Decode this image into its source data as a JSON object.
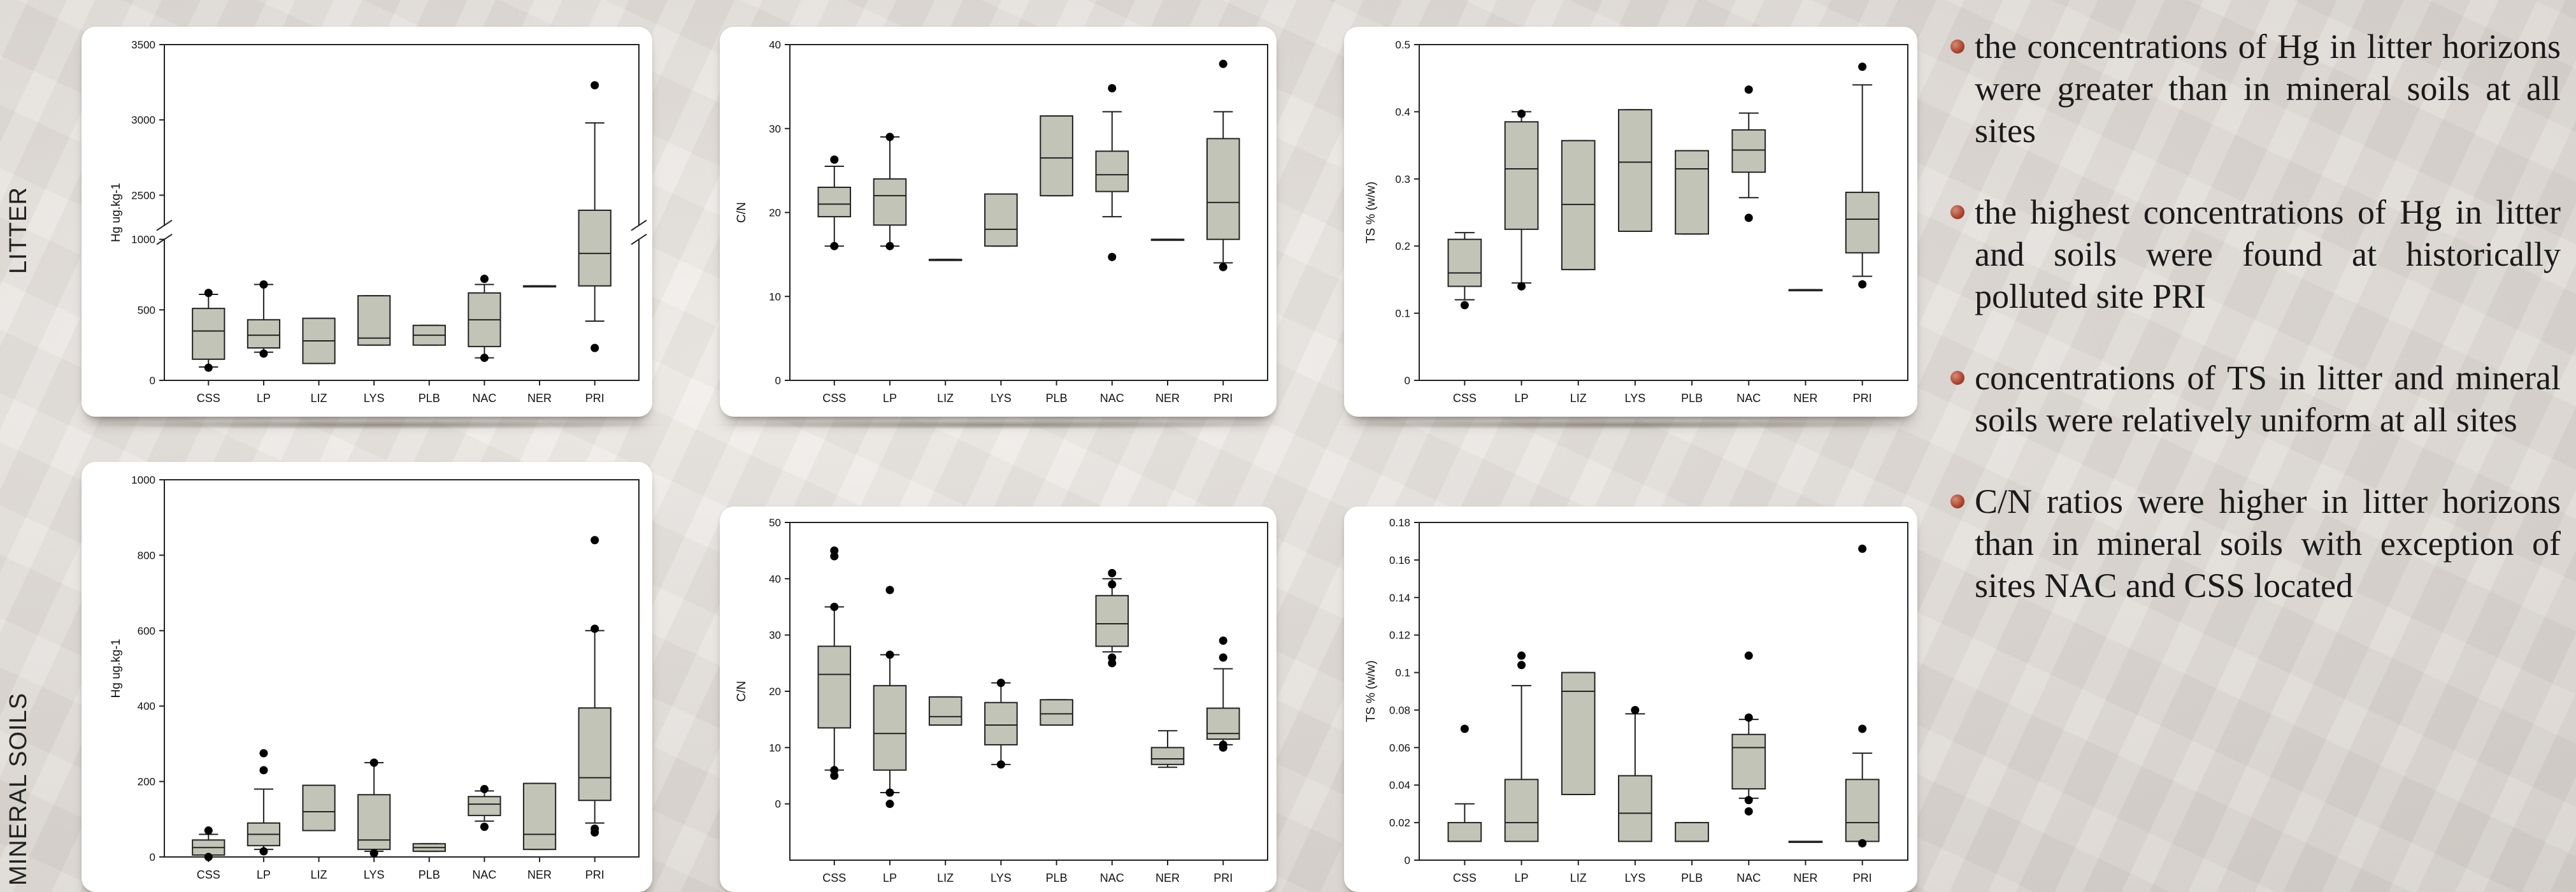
{
  "row_labels": {
    "top": "LITTER",
    "bottom": "MINERAL SOILS"
  },
  "colors": {
    "box_fill": "#c3c4b8",
    "box_stroke": "#222222",
    "outlier": "#000000",
    "bullet_dot": "#a8442e"
  },
  "bullets": [
    "the concentrations of Hg in litter horizons were greater than in mineral soils at all sites",
    "the highest concentrations of Hg in litter and soils were found at historically polluted site PRI",
    "concentrations of TS in litter and mineral soils were relatively uniform at all sites",
    "C/N ratios were higher in litter horizons than in mineral soils with exception of sites NAC and CSS located"
  ],
  "chart_data": [
    {
      "type": "box",
      "categories": [
        "CSS",
        "LP",
        "LIZ",
        "LYS",
        "PLB",
        "NAC",
        "NER",
        "PRI"
      ],
      "ylabel": "Hg ug.kg-1",
      "ylim": [
        0,
        3500
      ],
      "axis_break": [
        1000,
        2300
      ],
      "yticks": [
        0,
        500,
        1000,
        2500,
        3000,
        3500
      ],
      "boxes": [
        {
          "whisker_low": 95,
          "q1": 150,
          "median": 350,
          "q3": 510,
          "whisker_high": 610,
          "outliers": [
            90,
            620
          ]
        },
        {
          "whisker_low": 200,
          "q1": 230,
          "median": 320,
          "q3": 430,
          "whisker_high": 680,
          "outliers": [
            190,
            680
          ]
        },
        {
          "whisker_low": 120,
          "q1": 120,
          "median": 280,
          "q3": 440,
          "whisker_high": 440,
          "outliers": []
        },
        {
          "whisker_low": 250,
          "q1": 250,
          "median": 300,
          "q3": 600,
          "whisker_high": 600,
          "outliers": []
        },
        {
          "whisker_low": 250,
          "q1": 250,
          "median": 320,
          "q3": 390,
          "whisker_high": 390,
          "outliers": []
        },
        {
          "whisker_low": 160,
          "q1": 240,
          "median": 430,
          "q3": 620,
          "whisker_high": 680,
          "outliers": [
            160,
            720
          ]
        },
        {
          "whisker_low": 670,
          "q1": 670,
          "median": 670,
          "q3": 670,
          "whisker_high": 670,
          "outliers": []
        },
        {
          "whisker_low": 420,
          "q1": 670,
          "median": 900,
          "q3": 2400,
          "whisker_high": 2980,
          "outliers": [
            230,
            3230
          ]
        }
      ]
    },
    {
      "type": "box",
      "categories": [
        "CSS",
        "LP",
        "LIZ",
        "LYS",
        "PLB",
        "NAC",
        "NER",
        "PRI"
      ],
      "ylabel": "C/N",
      "ylim": [
        0,
        40
      ],
      "yticks": [
        0,
        10,
        20,
        30,
        40
      ],
      "boxes": [
        {
          "whisker_low": 16,
          "q1": 19.5,
          "median": 21,
          "q3": 23,
          "whisker_high": 25.5,
          "outliers": [
            16,
            26.3
          ]
        },
        {
          "whisker_low": 16,
          "q1": 18.5,
          "median": 22,
          "q3": 24,
          "whisker_high": 29,
          "outliers": [
            16,
            29
          ]
        },
        {
          "whisker_low": 14.4,
          "q1": 14.4,
          "median": 14.4,
          "q3": 14.4,
          "whisker_high": 14.4,
          "outliers": []
        },
        {
          "whisker_low": 16,
          "q1": 16,
          "median": 18,
          "q3": 22.2,
          "whisker_high": 22.2,
          "outliers": []
        },
        {
          "whisker_low": 22,
          "q1": 22,
          "median": 26.5,
          "q3": 31.5,
          "whisker_high": 31.5,
          "outliers": []
        },
        {
          "whisker_low": 19.5,
          "q1": 22.5,
          "median": 24.5,
          "q3": 27.3,
          "whisker_high": 32,
          "outliers": [
            14.7,
            34.8
          ]
        },
        {
          "whisker_low": 16.8,
          "q1": 16.8,
          "median": 16.8,
          "q3": 16.8,
          "whisker_high": 16.8,
          "outliers": []
        },
        {
          "whisker_low": 14,
          "q1": 16.8,
          "median": 21.2,
          "q3": 28.8,
          "whisker_high": 32,
          "outliers": [
            13.5,
            37.7
          ]
        }
      ]
    },
    {
      "type": "box",
      "categories": [
        "CSS",
        "LP",
        "LIZ",
        "LYS",
        "PLB",
        "NAC",
        "NER",
        "PRI"
      ],
      "ylabel": "TS % (w/w)",
      "ylim": [
        0,
        0.5
      ],
      "yticks": [
        0.0,
        0.1,
        0.2,
        0.3,
        0.4,
        0.5
      ],
      "boxes": [
        {
          "whisker_low": 0.12,
          "q1": 0.14,
          "median": 0.16,
          "q3": 0.21,
          "whisker_high": 0.22,
          "outliers": [
            0.112
          ]
        },
        {
          "whisker_low": 0.145,
          "q1": 0.225,
          "median": 0.315,
          "q3": 0.385,
          "whisker_high": 0.4,
          "outliers": [
            0.14,
            0.397
          ]
        },
        {
          "whisker_low": 0.165,
          "q1": 0.165,
          "median": 0.262,
          "q3": 0.357,
          "whisker_high": 0.357,
          "outliers": []
        },
        {
          "whisker_low": 0.222,
          "q1": 0.222,
          "median": 0.325,
          "q3": 0.403,
          "whisker_high": 0.403,
          "outliers": []
        },
        {
          "whisker_low": 0.218,
          "q1": 0.218,
          "median": 0.315,
          "q3": 0.342,
          "whisker_high": 0.342,
          "outliers": []
        },
        {
          "whisker_low": 0.272,
          "q1": 0.31,
          "median": 0.343,
          "q3": 0.373,
          "whisker_high": 0.398,
          "outliers": [
            0.242,
            0.433
          ]
        },
        {
          "whisker_low": 0.135,
          "q1": 0.135,
          "median": 0.135,
          "q3": 0.135,
          "whisker_high": 0.135,
          "outliers": []
        },
        {
          "whisker_low": 0.155,
          "q1": 0.19,
          "median": 0.24,
          "q3": 0.28,
          "whisker_high": 0.44,
          "outliers": [
            0.143,
            0.467
          ]
        }
      ]
    },
    {
      "type": "box",
      "categories": [
        "CSS",
        "LP",
        "LIZ",
        "LYS",
        "PLB",
        "NAC",
        "NER",
        "PRI"
      ],
      "ylabel": "Hg ug.kg-1",
      "ylim": [
        0,
        1000
      ],
      "yticks": [
        0,
        200,
        400,
        600,
        800,
        1000
      ],
      "boxes": [
        {
          "whisker_low": 0,
          "q1": 5,
          "median": 25,
          "q3": 45,
          "whisker_high": 60,
          "outliers": [
            0,
            70
          ]
        },
        {
          "whisker_low": 20,
          "q1": 30,
          "median": 60,
          "q3": 90,
          "whisker_high": 180,
          "outliers": [
            15,
            230,
            275
          ]
        },
        {
          "whisker_low": 70,
          "q1": 70,
          "median": 120,
          "q3": 190,
          "whisker_high": 190,
          "outliers": []
        },
        {
          "whisker_low": 15,
          "q1": 20,
          "median": 45,
          "q3": 165,
          "whisker_high": 250,
          "outliers": [
            10,
            250
          ]
        },
        {
          "whisker_low": 15,
          "q1": 15,
          "median": 25,
          "q3": 35,
          "whisker_high": 35,
          "outliers": []
        },
        {
          "whisker_low": 95,
          "q1": 110,
          "median": 140,
          "q3": 160,
          "whisker_high": 175,
          "outliers": [
            80,
            180
          ]
        },
        {
          "whisker_low": 20,
          "q1": 20,
          "median": 60,
          "q3": 195,
          "whisker_high": 195,
          "outliers": []
        },
        {
          "whisker_low": 90,
          "q1": 150,
          "median": 210,
          "q3": 395,
          "whisker_high": 600,
          "outliers": [
            65,
            75,
            605,
            840
          ]
        }
      ]
    },
    {
      "type": "box",
      "categories": [
        "CSS",
        "LP",
        "LIZ",
        "LYS",
        "PLB",
        "NAC",
        "NER",
        "PRI"
      ],
      "ylabel": "C/N",
      "ylim": [
        -10,
        50
      ],
      "yticks": [
        0,
        10,
        20,
        30,
        40,
        50
      ],
      "boxes": [
        {
          "whisker_low": 6,
          "q1": 13.5,
          "median": 23,
          "q3": 28,
          "whisker_high": 35,
          "outliers": [
            5,
            6,
            35,
            44,
            45
          ]
        },
        {
          "whisker_low": 2,
          "q1": 6,
          "median": 12.5,
          "q3": 21,
          "whisker_high": 26.5,
          "outliers": [
            0,
            2,
            26.5,
            38
          ]
        },
        {
          "whisker_low": 14,
          "q1": 14,
          "median": 15.5,
          "q3": 19,
          "whisker_high": 19,
          "outliers": []
        },
        {
          "whisker_low": 7,
          "q1": 10.5,
          "median": 14,
          "q3": 18,
          "whisker_high": 21.5,
          "outliers": [
            7,
            21.5
          ]
        },
        {
          "whisker_low": 14,
          "q1": 14,
          "median": 16,
          "q3": 18.5,
          "whisker_high": 18.5,
          "outliers": []
        },
        {
          "whisker_low": 27,
          "q1": 28,
          "median": 32,
          "q3": 37,
          "whisker_high": 40,
          "outliers": [
            25,
            26,
            39,
            41
          ]
        },
        {
          "whisker_low": 6.5,
          "q1": 7,
          "median": 8,
          "q3": 10,
          "whisker_high": 13,
          "outliers": []
        },
        {
          "whisker_low": 10.5,
          "q1": 11.5,
          "median": 12.5,
          "q3": 17,
          "whisker_high": 24,
          "outliers": [
            10,
            10.5,
            26,
            29
          ]
        }
      ]
    },
    {
      "type": "box",
      "categories": [
        "CSS",
        "LP",
        "LIZ",
        "LYS",
        "PLB",
        "NAC",
        "NER",
        "PRI"
      ],
      "ylabel": "TS % (w/w)",
      "ylim": [
        0,
        0.18
      ],
      "yticks": [
        0.0,
        0.02,
        0.04,
        0.06,
        0.08,
        0.1,
        0.12,
        0.14,
        0.16,
        0.18
      ],
      "boxes": [
        {
          "whisker_low": 0.01,
          "q1": 0.01,
          "median": 0.01,
          "q3": 0.02,
          "whisker_high": 0.03,
          "outliers": [
            0.07
          ]
        },
        {
          "whisker_low": 0.01,
          "q1": 0.01,
          "median": 0.02,
          "q3": 0.043,
          "whisker_high": 0.093,
          "outliers": [
            0.104,
            0.109
          ]
        },
        {
          "whisker_low": 0.035,
          "q1": 0.035,
          "median": 0.09,
          "q3": 0.1,
          "whisker_high": 0.1,
          "outliers": []
        },
        {
          "whisker_low": 0.01,
          "q1": 0.01,
          "median": 0.025,
          "q3": 0.045,
          "whisker_high": 0.078,
          "outliers": [
            0.08
          ]
        },
        {
          "whisker_low": 0.01,
          "q1": 0.01,
          "median": 0.01,
          "q3": 0.02,
          "whisker_high": 0.02,
          "outliers": []
        },
        {
          "whisker_low": 0.033,
          "q1": 0.038,
          "median": 0.06,
          "q3": 0.067,
          "whisker_high": 0.075,
          "outliers": [
            0.026,
            0.032,
            0.076,
            0.109
          ]
        },
        {
          "whisker_low": 0.01,
          "q1": 0.01,
          "median": 0.01,
          "q3": 0.01,
          "whisker_high": 0.01,
          "outliers": []
        },
        {
          "whisker_low": 0.01,
          "q1": 0.01,
          "median": 0.02,
          "q3": 0.043,
          "whisker_high": 0.057,
          "outliers": [
            0.009,
            0.07,
            0.166
          ]
        }
      ]
    }
  ]
}
